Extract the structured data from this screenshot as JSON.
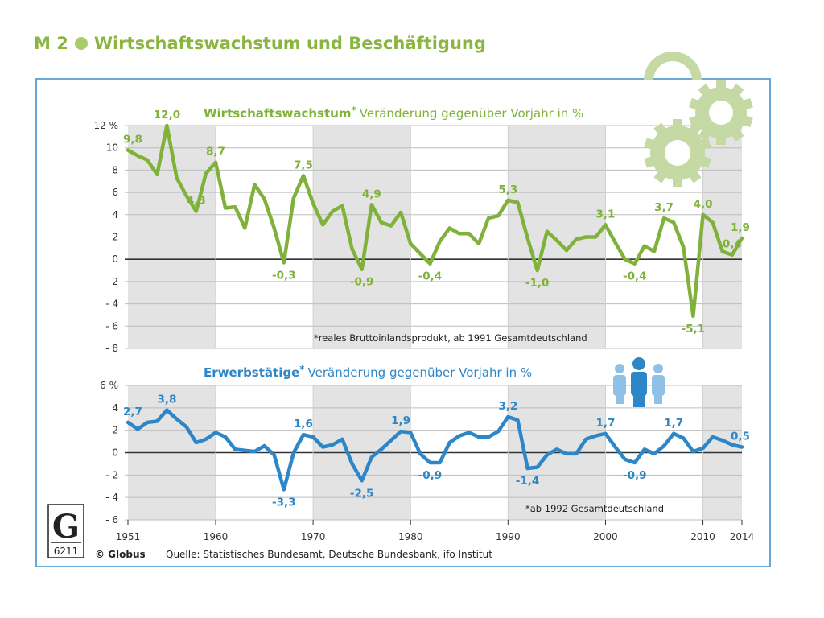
{
  "heading": {
    "label": "M 2",
    "title": "Wirtschaftswachstum und Beschäftigung"
  },
  "footer": {
    "publisher": "© Globus",
    "source": "Quelle: Statistisches Bundesamt, Deutsche Bundesbank, ifo Institut",
    "logo_letter": "G",
    "logo_number": "6211"
  },
  "colors": {
    "green": "#7fb23a",
    "blue": "#2d86c7",
    "frame": "#6aa9d6",
    "band": "#e3e3e3"
  },
  "chart_data": [
    {
      "type": "line",
      "title_bold": "Wirtschaftswachstum",
      "title_star": "*",
      "title_rest": "Veränderung gegenüber Vorjahr in %",
      "footnote": "*reales Bruttoinlandsprodukt, ab 1991 Gesamtdeutschland",
      "ylim": [
        -8,
        12
      ],
      "yticks": [
        "12 %",
        "10",
        "8",
        "6",
        "4",
        "2",
        "0",
        "- 2",
        "- 4",
        "- 6",
        "- 8"
      ],
      "x": [
        1951,
        1952,
        1953,
        1954,
        1955,
        1956,
        1957,
        1958,
        1959,
        1960,
        1961,
        1962,
        1963,
        1964,
        1965,
        1966,
        1967,
        1968,
        1969,
        1970,
        1971,
        1972,
        1973,
        1974,
        1975,
        1976,
        1977,
        1978,
        1979,
        1980,
        1981,
        1982,
        1983,
        1984,
        1985,
        1986,
        1987,
        1988,
        1989,
        1990,
        1991,
        1992,
        1993,
        1994,
        1995,
        1996,
        1997,
        1998,
        1999,
        2000,
        2001,
        2002,
        2003,
        2004,
        2005,
        2006,
        2007,
        2008,
        2009,
        2010,
        2011,
        2012,
        2013,
        2014
      ],
      "values": [
        9.8,
        9.3,
        8.9,
        7.6,
        12.0,
        7.3,
        5.7,
        4.3,
        7.7,
        8.7,
        4.6,
        4.7,
        2.8,
        6.7,
        5.4,
        2.8,
        -0.3,
        5.5,
        7.5,
        5.0,
        3.1,
        4.3,
        4.8,
        0.9,
        -0.9,
        4.9,
        3.3,
        3.0,
        4.2,
        1.4,
        0.5,
        -0.4,
        1.6,
        2.8,
        2.3,
        2.3,
        1.4,
        3.7,
        3.9,
        5.3,
        5.1,
        1.9,
        -1.0,
        2.5,
        1.7,
        0.8,
        1.8,
        2.0,
        2.0,
        3.1,
        1.5,
        0.0,
        -0.4,
        1.2,
        0.7,
        3.7,
        3.3,
        1.1,
        -5.1,
        4.0,
        3.3,
        0.7,
        0.4,
        1.9
      ],
      "labels": [
        {
          "year": 1951,
          "value": "9,8"
        },
        {
          "year": 1955,
          "value": "12,0"
        },
        {
          "year": 1958,
          "value": "4,3"
        },
        {
          "year": 1960,
          "value": "8,7"
        },
        {
          "year": 1967,
          "value": "-0,3"
        },
        {
          "year": 1969,
          "value": "7,5"
        },
        {
          "year": 1975,
          "value": "-0,9"
        },
        {
          "year": 1976,
          "value": "4,9"
        },
        {
          "year": 1982,
          "value": "-0,4"
        },
        {
          "year": 1990,
          "value": "5,3"
        },
        {
          "year": 1993,
          "value": "-1,0"
        },
        {
          "year": 2000,
          "value": "3,1"
        },
        {
          "year": 2003,
          "value": "-0,4"
        },
        {
          "year": 2006,
          "value": "3,7"
        },
        {
          "year": 2009,
          "value": "-5,1"
        },
        {
          "year": 2010,
          "value": "4,0"
        },
        {
          "year": 2013,
          "value": "0,4"
        },
        {
          "year": 2014,
          "value": "1,9"
        }
      ]
    },
    {
      "type": "line",
      "title_bold": "Erwerbstätige",
      "title_star": "*",
      "title_rest": "Veränderung gegenüber Vorjahr in %",
      "footnote": "*ab 1992 Gesamtdeutschland",
      "ylim": [
        -6,
        6
      ],
      "yticks": [
        "6 %",
        "4",
        "2",
        "0",
        "- 2",
        "- 4",
        "- 6"
      ],
      "x": [
        1951,
        1952,
        1953,
        1954,
        1955,
        1956,
        1957,
        1958,
        1959,
        1960,
        1961,
        1962,
        1963,
        1964,
        1965,
        1966,
        1967,
        1968,
        1969,
        1970,
        1971,
        1972,
        1973,
        1974,
        1975,
        1976,
        1977,
        1978,
        1979,
        1980,
        1981,
        1982,
        1983,
        1984,
        1985,
        1986,
        1987,
        1988,
        1989,
        1990,
        1991,
        1992,
        1993,
        1994,
        1995,
        1996,
        1997,
        1998,
        1999,
        2000,
        2001,
        2002,
        2003,
        2004,
        2005,
        2006,
        2007,
        2008,
        2009,
        2010,
        2011,
        2012,
        2013,
        2014
      ],
      "values": [
        2.7,
        2.1,
        2.7,
        2.8,
        3.8,
        3.0,
        2.3,
        0.9,
        1.2,
        1.8,
        1.4,
        0.3,
        0.2,
        0.1,
        0.6,
        -0.2,
        -3.3,
        0.0,
        1.6,
        1.4,
        0.5,
        0.7,
        1.2,
        -1.0,
        -2.5,
        -0.4,
        0.3,
        1.1,
        1.9,
        1.8,
        -0.1,
        -0.9,
        -0.9,
        0.9,
        1.5,
        1.8,
        1.4,
        1.4,
        1.9,
        3.2,
        2.9,
        -1.4,
        -1.3,
        -0.2,
        0.3,
        -0.1,
        -0.1,
        1.2,
        1.5,
        1.7,
        0.5,
        -0.6,
        -0.9,
        0.3,
        -0.1,
        0.6,
        1.7,
        1.3,
        0.1,
        0.4,
        1.4,
        1.1,
        0.7,
        0.5
      ],
      "labels": [
        {
          "year": 1951,
          "value": "2,7"
        },
        {
          "year": 1955,
          "value": "3,8"
        },
        {
          "year": 1967,
          "value": "-3,3"
        },
        {
          "year": 1969,
          "value": "1,6"
        },
        {
          "year": 1975,
          "value": "-2,5"
        },
        {
          "year": 1979,
          "value": "1,9"
        },
        {
          "year": 1982,
          "value": "-0,9"
        },
        {
          "year": 1990,
          "value": "3,2"
        },
        {
          "year": 1992,
          "value": "-1,4"
        },
        {
          "year": 2000,
          "value": "1,7"
        },
        {
          "year": 2003,
          "value": "-0,9"
        },
        {
          "year": 2007,
          "value": "1,7"
        },
        {
          "year": 2014,
          "value": "0,5"
        }
      ]
    }
  ],
  "x_ticks": [
    "1951",
    "1960",
    "1970",
    "1980",
    "1990",
    "2000",
    "2010",
    "2014"
  ],
  "decorations": {
    "top_panel_icon": "gears-icon",
    "bottom_panel_icon": "people-icon"
  }
}
